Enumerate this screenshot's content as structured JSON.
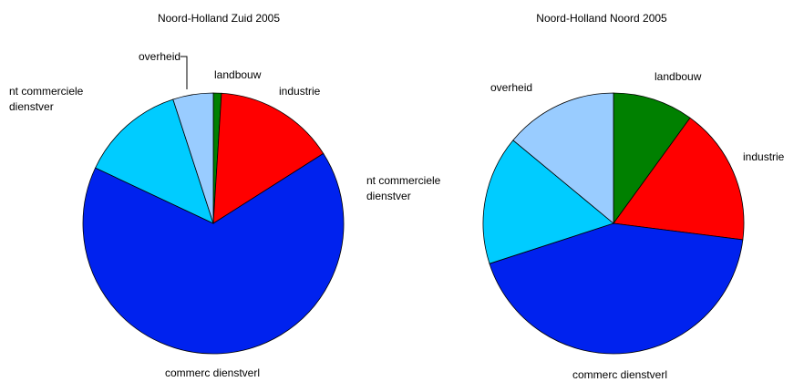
{
  "chart_data": [
    {
      "type": "pie",
      "title": "Noord-Holland Zuid 2005",
      "categories": [
        "landbouw",
        "industrie",
        "commerc dienstverl",
        "nt commerciele dienstver",
        "overheid"
      ],
      "values": [
        1,
        15,
        66,
        13,
        5
      ],
      "colors": [
        "#008000",
        "#ff0000",
        "#0022ee",
        "#00ccff",
        "#99ccff"
      ]
    },
    {
      "type": "pie",
      "title": "Noord-Holland Noord 2005",
      "categories": [
        "landbouw",
        "industrie",
        "commerc dienstverl",
        "nt commerciele dienstver",
        "overheid"
      ],
      "values": [
        10,
        17,
        43,
        16,
        14
      ],
      "colors": [
        "#008000",
        "#ff0000",
        "#0022ee",
        "#00ccff",
        "#99ccff"
      ]
    }
  ]
}
